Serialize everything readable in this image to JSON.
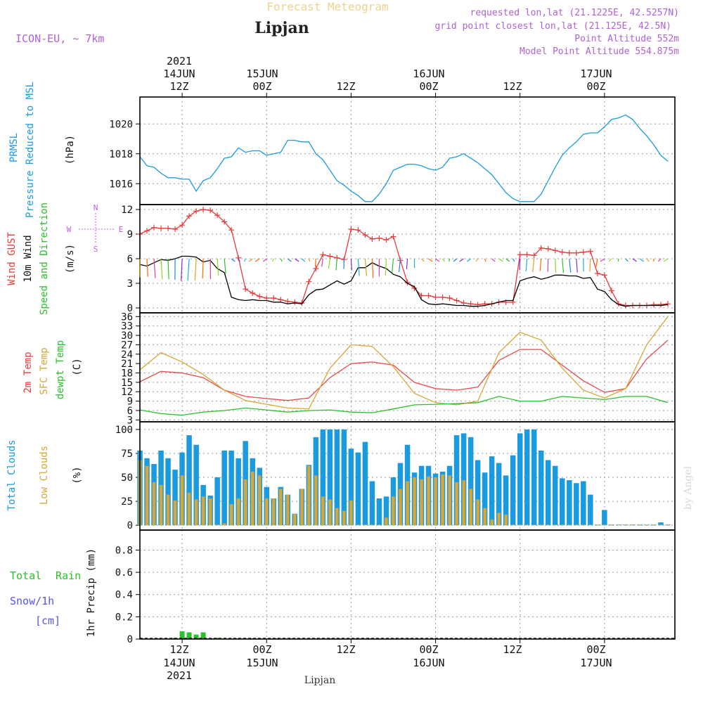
{
  "header": {
    "title": "Forecast Meteogram",
    "location": "Lipjan",
    "model": "ICON-EU, ~ 7km",
    "requested": "requested lon,lat (21.1225E, 42.5257N)",
    "grid_point": "grid point closest lon,lat (21.125E, 42.5N)",
    "point_altitude": "Point Altitude 552m",
    "model_altitude": "Model Point Altitude 554.875m",
    "footer_location": "Lipjan",
    "watermark": "by Angel"
  },
  "time_axis": {
    "year": "2021",
    "dates": [
      "14JUN",
      "15JUN",
      "16JUN",
      "17JUN"
    ],
    "ticks": [
      {
        "h": 12,
        "label": "12Z",
        "date": "14JUN",
        "year": "2021"
      },
      {
        "h": 24,
        "label": "00Z",
        "date": "15JUN"
      },
      {
        "h": 36,
        "label": "12Z"
      },
      {
        "h": 48,
        "label": "00Z",
        "date": "16JUN"
      },
      {
        "h": 60,
        "label": "12Z"
      },
      {
        "h": 72,
        "label": "00Z",
        "date": "17JUN"
      }
    ],
    "start_hour": 6,
    "end_hour": 82
  },
  "chart_data": [
    {
      "type": "line",
      "id": "pressure",
      "labels": [
        "PRMSL",
        "Pressure Reduced to MSL",
        "(hPa)"
      ],
      "yticks": [
        1016,
        1018,
        1020
      ],
      "ylim": [
        1014.6,
        1021.8
      ],
      "series": [
        {
          "name": "PRMSL",
          "color": "#1a9be0",
          "x": [
            6,
            7,
            8,
            9,
            10,
            11,
            12,
            13,
            14,
            15,
            16,
            17,
            18,
            19,
            20,
            21,
            22,
            23,
            24,
            25,
            26,
            27,
            28,
            29,
            30,
            31,
            32,
            33,
            34,
            35,
            36,
            37,
            38,
            39,
            40,
            41,
            42,
            43,
            44,
            45,
            46,
            47,
            48,
            49,
            50,
            51,
            52,
            53,
            54,
            55,
            56,
            57,
            58,
            59,
            60,
            61,
            62,
            63,
            64,
            65,
            66,
            67,
            68,
            69,
            70,
            71,
            72,
            73,
            74,
            75,
            76,
            77,
            78,
            79,
            80,
            81
          ],
          "y": [
            1017.8,
            1017.2,
            1017.1,
            1016.7,
            1016.4,
            1016.4,
            1016.3,
            1016.3,
            1015.5,
            1016.2,
            1016.4,
            1017.0,
            1017.7,
            1017.8,
            1018.4,
            1018.1,
            1018.2,
            1018.2,
            1017.9,
            1018.0,
            1018.1,
            1018.9,
            1018.9,
            1018.8,
            1018.8,
            1018.0,
            1017.6,
            1016.9,
            1016.2,
            1015.9,
            1015.5,
            1015.2,
            1014.8,
            1014.8,
            1015.3,
            1016.0,
            1016.9,
            1017.1,
            1017.3,
            1017.3,
            1017.2,
            1017.0,
            1016.9,
            1017.1,
            1017.7,
            1017.8,
            1018.0,
            1017.7,
            1017.4,
            1017.0,
            1016.6,
            1016.0,
            1015.4,
            1015.0,
            1014.8,
            1014.8,
            1014.8,
            1015.3,
            1016.2,
            1017.1,
            1017.9,
            1018.4,
            1018.8,
            1019.3,
            1019.4,
            1019.4,
            1019.8,
            1020.3,
            1020.4,
            1020.6,
            1020.3,
            1019.7,
            1019.2,
            1018.6,
            1017.9,
            1017.5
          ]
        }
      ]
    },
    {
      "type": "line",
      "id": "wind",
      "labels": [
        "Wind GUST",
        "10m Wind",
        "Speed and Direction",
        "(m/s)"
      ],
      "compass": [
        "N",
        "S",
        "W",
        "E"
      ],
      "yticks": [
        0,
        3,
        6,
        9,
        12
      ],
      "ylim": [
        -0.6,
        12.6
      ],
      "series": [
        {
          "name": "Wind GUST",
          "color": "#e83a3a",
          "marker": "+",
          "x": [
            6,
            7,
            8,
            9,
            10,
            11,
            12,
            13,
            14,
            15,
            16,
            17,
            18,
            19,
            20,
            21,
            22,
            23,
            24,
            25,
            26,
            27,
            28,
            29,
            30,
            31,
            32,
            33,
            34,
            35,
            36,
            37,
            38,
            39,
            40,
            41,
            42,
            43,
            44,
            45,
            46,
            47,
            48,
            49,
            50,
            51,
            52,
            53,
            54,
            55,
            56,
            57,
            58,
            59,
            60,
            61,
            62,
            63,
            64,
            65,
            66,
            67,
            68,
            69,
            70,
            71,
            72,
            73,
            74,
            75,
            76,
            77,
            78,
            79,
            80,
            81
          ],
          "y": [
            9.0,
            9.4,
            9.8,
            9.7,
            9.7,
            9.6,
            10.1,
            11.2,
            11.8,
            12.0,
            11.9,
            11.3,
            10.5,
            9.5,
            6.1,
            2.3,
            1.8,
            1.4,
            1.2,
            1.2,
            1.0,
            0.8,
            0.7,
            0.6,
            3.2,
            4.8,
            6.5,
            6.3,
            6.1,
            5.9,
            9.6,
            9.5,
            8.9,
            8.4,
            8.5,
            8.3,
            8.7,
            5.8,
            3.1,
            2.4,
            1.5,
            1.5,
            1.3,
            1.3,
            1.2,
            0.9,
            0.6,
            0.5,
            0.4,
            0.5,
            0.5,
            0.7,
            0.7,
            0.7,
            6.5,
            6.5,
            6.4,
            7.3,
            7.2,
            7.0,
            6.8,
            6.7,
            6.7,
            6.8,
            6.9,
            4.2,
            4.0,
            2.1,
            0.5,
            0.3,
            0.3,
            0.3,
            0.3,
            0.4,
            0.4,
            0.5
          ]
        },
        {
          "name": "10m Wind",
          "color": "#000000",
          "x": [
            6,
            7,
            8,
            9,
            10,
            11,
            12,
            13,
            14,
            15,
            16,
            17,
            18,
            19,
            20,
            21,
            22,
            23,
            24,
            25,
            26,
            27,
            28,
            29,
            30,
            31,
            32,
            33,
            34,
            35,
            36,
            37,
            38,
            39,
            40,
            41,
            42,
            43,
            44,
            45,
            46,
            47,
            48,
            49,
            50,
            51,
            52,
            53,
            54,
            55,
            56,
            57,
            58,
            59,
            60,
            61,
            62,
            63,
            64,
            65,
            66,
            67,
            68,
            69,
            70,
            71,
            72,
            73,
            74,
            75,
            76,
            77,
            78,
            79,
            80,
            81
          ],
          "y": [
            5.3,
            5.1,
            5.5,
            5.9,
            5.8,
            6.0,
            6.3,
            6.3,
            6.2,
            5.6,
            5.8,
            4.8,
            4.3,
            1.3,
            1.0,
            0.9,
            1.0,
            0.9,
            0.9,
            0.7,
            0.7,
            0.5,
            0.6,
            0.5,
            1.6,
            2.2,
            2.3,
            2.8,
            3.3,
            2.9,
            3.3,
            4.9,
            4.9,
            5.5,
            5.1,
            4.8,
            4.1,
            3.8,
            3.0,
            2.6,
            1.0,
            0.5,
            0.4,
            0.5,
            0.4,
            0.3,
            0.3,
            0.2,
            0.2,
            0.3,
            0.5,
            0.7,
            0.9,
            0.9,
            3.3,
            3.6,
            3.8,
            3.5,
            3.7,
            4.0,
            4.0,
            3.9,
            3.9,
            3.6,
            3.7,
            2.3,
            2.0,
            1.0,
            0.4,
            0.2,
            0.3,
            0.3,
            0.3,
            0.3,
            0.3,
            0.4
          ]
        }
      ]
    },
    {
      "type": "line",
      "id": "temperature",
      "labels": [
        "2m Temp",
        "SFC Temp",
        "dewpt Temp",
        "(C)"
      ],
      "yticks": [
        3,
        6,
        9,
        12,
        15,
        18,
        21,
        24,
        27,
        30,
        33,
        36
      ],
      "ylim": [
        2.4,
        37.2
      ],
      "series": [
        {
          "name": "2m Temp",
          "color": "#e84a4a",
          "x": [
            6,
            9,
            12,
            15,
            18,
            21,
            24,
            27,
            30,
            33,
            36,
            39,
            42,
            45,
            48,
            51,
            54,
            57,
            60,
            63,
            66,
            69,
            72,
            75,
            78,
            81
          ],
          "y": [
            15.2,
            18.5,
            18.0,
            16.5,
            12.5,
            10.5,
            9.8,
            9.2,
            10.0,
            16.5,
            21.0,
            21.5,
            20.5,
            15.0,
            13.0,
            12.5,
            13.5,
            22.0,
            25.5,
            25.5,
            20.5,
            15.5,
            11.8,
            13.0,
            22.5,
            28.5
          ]
        },
        {
          "name": "SFC Temp",
          "color": "#d8a635",
          "x": [
            6,
            9,
            12,
            15,
            18,
            21,
            24,
            27,
            30,
            33,
            36,
            39,
            42,
            45,
            48,
            51,
            54,
            57,
            60,
            63,
            66,
            69,
            72,
            75,
            78,
            81
          ],
          "y": [
            19.0,
            24.5,
            21.5,
            17.5,
            12.5,
            9.2,
            8.0,
            6.8,
            6.5,
            19.5,
            27.0,
            26.5,
            20.0,
            11.5,
            8.5,
            7.8,
            9.0,
            24.5,
            31.0,
            28.5,
            19.5,
            12.5,
            10.0,
            13.0,
            27.0,
            36.0
          ]
        },
        {
          "name": "dewpt Temp",
          "color": "#2cc02c",
          "x": [
            6,
            9,
            12,
            15,
            18,
            21,
            24,
            27,
            30,
            33,
            36,
            39,
            42,
            45,
            48,
            51,
            54,
            57,
            60,
            63,
            66,
            69,
            72,
            75,
            78,
            81
          ],
          "y": [
            6.2,
            5.0,
            4.5,
            5.5,
            6.0,
            6.8,
            6.2,
            5.5,
            6.0,
            6.2,
            5.5,
            5.3,
            6.5,
            7.8,
            8.0,
            8.2,
            8.5,
            10.5,
            9.0,
            9.0,
            10.5,
            10.0,
            9.5,
            10.5,
            10.5,
            8.5
          ]
        }
      ]
    },
    {
      "type": "bar",
      "id": "clouds",
      "labels": [
        "Total Clouds",
        "Low Clouds",
        "(%)"
      ],
      "yticks": [
        0,
        25,
        50,
        75,
        100
      ],
      "ylim": [
        -5,
        108
      ],
      "series": [
        {
          "name": "Total Clouds",
          "color": "#1a9be0",
          "x": [
            6,
            7,
            8,
            9,
            10,
            11,
            12,
            13,
            14,
            15,
            16,
            17,
            18,
            19,
            20,
            21,
            22,
            23,
            24,
            25,
            26,
            27,
            28,
            29,
            30,
            31,
            32,
            33,
            34,
            35,
            36,
            37,
            38,
            39,
            40,
            41,
            42,
            43,
            44,
            45,
            46,
            47,
            48,
            49,
            50,
            51,
            52,
            53,
            54,
            55,
            56,
            57,
            58,
            59,
            60,
            61,
            62,
            63,
            64,
            65,
            66,
            67,
            68,
            69,
            70,
            71,
            72,
            73,
            74,
            75,
            76,
            77,
            78,
            79,
            80,
            81
          ],
          "y": [
            78,
            70,
            64,
            78,
            70,
            58,
            76,
            94,
            84,
            42,
            31,
            50,
            78,
            78,
            70,
            88,
            70,
            60,
            40,
            28,
            40,
            32,
            12,
            38,
            63,
            92,
            100,
            100,
            100,
            100,
            80,
            76,
            87,
            46,
            28,
            30,
            50,
            65,
            84,
            55,
            62,
            62,
            54,
            56,
            62,
            94,
            96,
            92,
            68,
            55,
            72,
            65,
            52,
            73,
            96,
            100,
            100,
            78,
            68,
            62,
            49,
            47,
            44,
            46,
            32,
            0,
            16,
            0,
            0,
            0,
            0,
            0,
            0,
            0,
            3,
            0
          ]
        },
        {
          "name": "Low Clouds",
          "color": "#d8a635",
          "x": [
            6,
            7,
            8,
            9,
            10,
            11,
            12,
            13,
            14,
            15,
            16,
            17,
            18,
            19,
            20,
            21,
            22,
            23,
            24,
            25,
            26,
            27,
            28,
            29,
            30,
            31,
            32,
            33,
            34,
            35,
            36,
            37,
            38,
            39,
            40,
            41,
            42,
            43,
            44,
            45,
            46,
            47,
            48,
            49,
            50,
            51,
            52,
            53,
            54,
            55,
            56,
            57,
            58,
            59,
            60,
            61,
            62,
            63,
            64,
            65,
            66,
            67,
            68,
            69,
            70,
            71,
            72,
            73,
            74,
            75,
            76,
            77,
            78,
            79,
            80,
            81
          ],
          "y": [
            68,
            62,
            45,
            42,
            32,
            26,
            52,
            34,
            27,
            30,
            28,
            0,
            2,
            22,
            28,
            48,
            56,
            52,
            28,
            28,
            38,
            32,
            12,
            38,
            62,
            52,
            30,
            27,
            18,
            15,
            26,
            0,
            0,
            0,
            0,
            8,
            30,
            38,
            46,
            50,
            48,
            51,
            50,
            53,
            52,
            45,
            47,
            38,
            27,
            18,
            6,
            13,
            11,
            0,
            0,
            0,
            0,
            0,
            0,
            0,
            0,
            0,
            0,
            0,
            0,
            0,
            0,
            0,
            0,
            0,
            0,
            0,
            0,
            0,
            0,
            0
          ]
        }
      ]
    },
    {
      "type": "bar",
      "id": "precip",
      "labels": [
        "Total",
        "Rain",
        "Snow/1h",
        "[cm]",
        "1hr Precip (mm)"
      ],
      "yticks": [
        0,
        0.2,
        0.4,
        0.6,
        0.8
      ],
      "ylim": [
        0,
        0.98
      ],
      "series": [
        {
          "name": "Rain",
          "color": "#2cc02c",
          "x": [
            11,
            12,
            13,
            14,
            15,
            16,
            17
          ],
          "y": [
            0.01,
            0.07,
            0.06,
            0.04,
            0.06,
            0.0,
            0.01
          ]
        }
      ]
    }
  ]
}
